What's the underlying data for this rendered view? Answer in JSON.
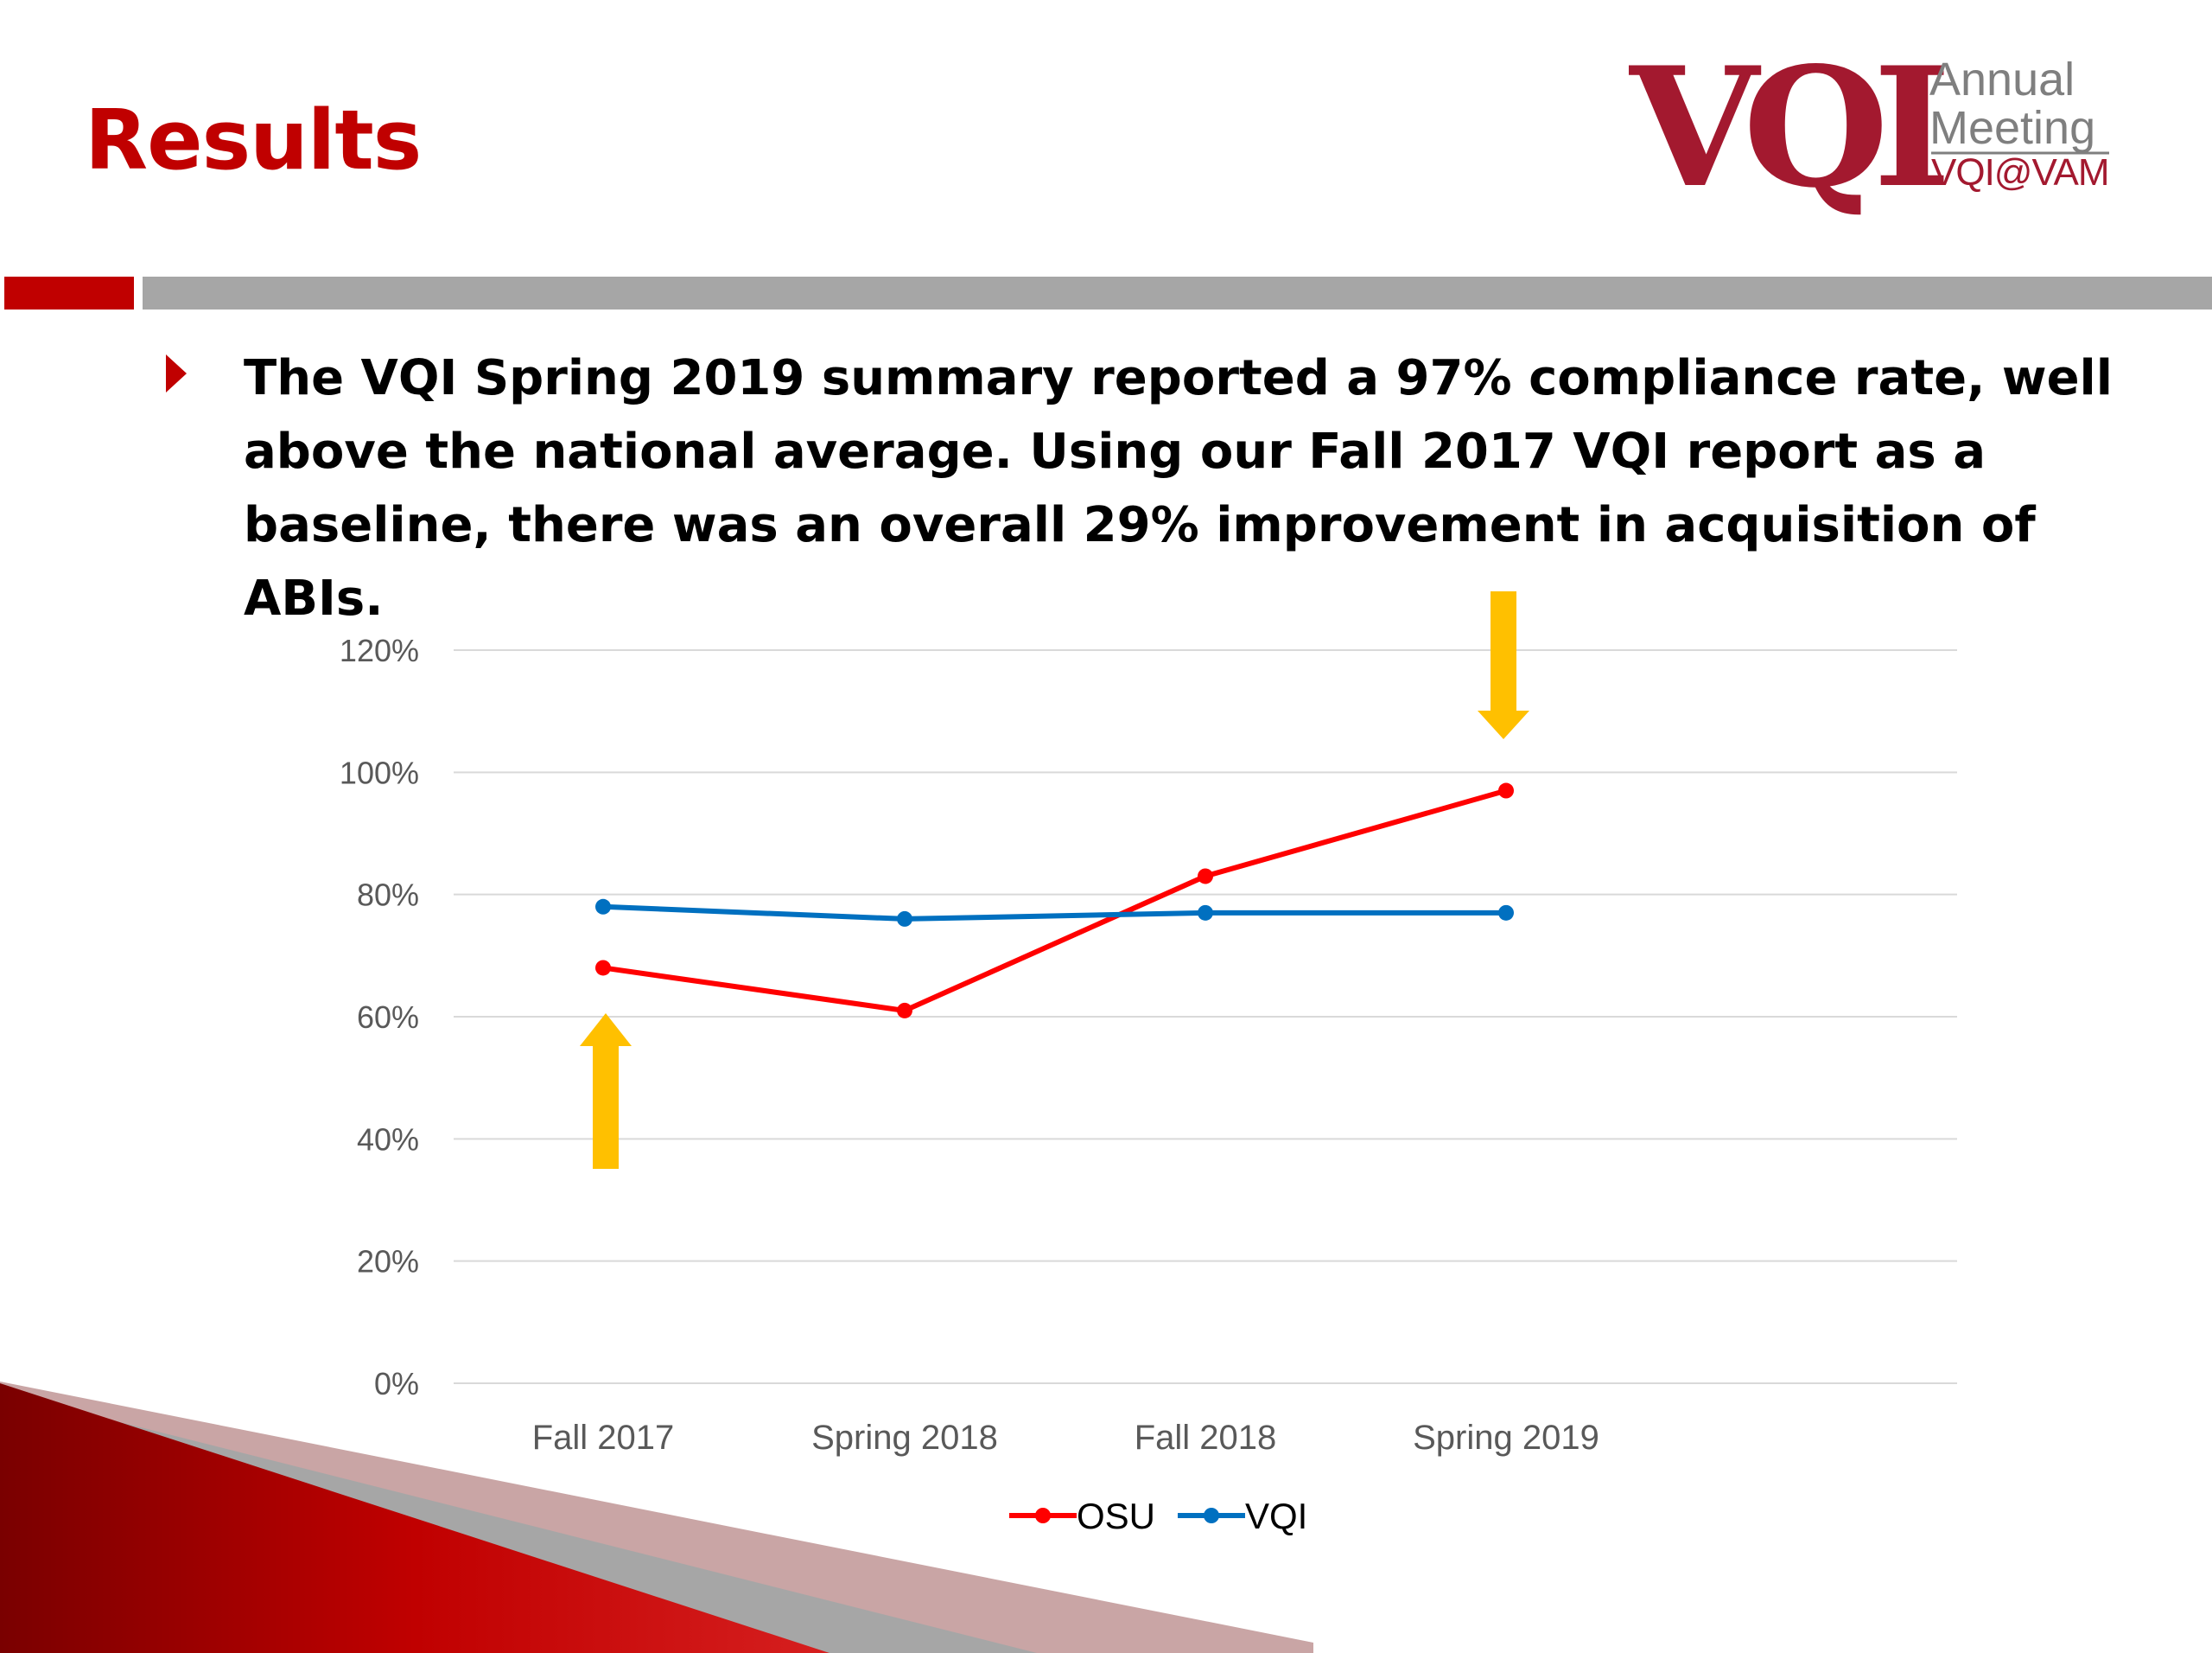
{
  "slide": {
    "title": "Results",
    "body": "The VQI Spring 2019 summary reported a 97% compliance rate, well above the national average.  Using our Fall 2017 VQI report as a baseline, there was an overall 29% improvement in acquisition of ABIs."
  },
  "logo": {
    "mark": "VQI",
    "line1": "Annual",
    "line2": "Meeting",
    "line3": "VQI@VAM"
  },
  "colors": {
    "accent_red": "#c00000",
    "gray_bar": "#a6a6a6",
    "arrow": "#ffc000"
  },
  "chart_data": {
    "type": "line",
    "categories": [
      "Fall 2017",
      "Spring 2018",
      "Fall 2018",
      "Spring 2019"
    ],
    "series": [
      {
        "name": "OSU",
        "color": "#ff0000",
        "values": [
          68,
          61,
          83,
          97
        ]
      },
      {
        "name": "VQI",
        "color": "#0070c0",
        "values": [
          78,
          76,
          77,
          77
        ]
      }
    ],
    "yticks": [
      "0%",
      "20%",
      "40%",
      "60%",
      "80%",
      "100%",
      "120%"
    ],
    "ylim": [
      0,
      120
    ],
    "grid": true,
    "legend": "bottom"
  }
}
